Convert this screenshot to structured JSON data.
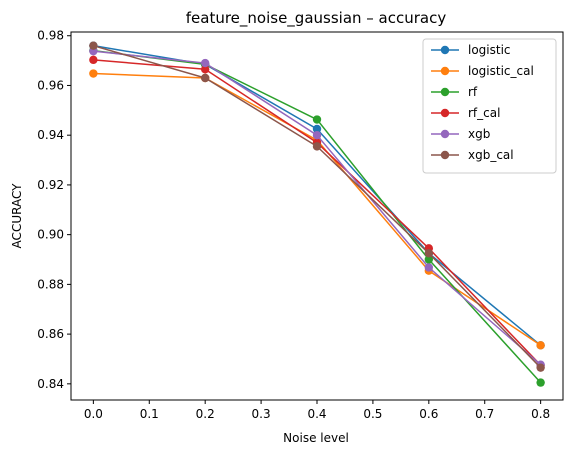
{
  "chart_data": {
    "type": "line",
    "title": "feature_noise_gaussian – accuracy",
    "xlabel": "Noise level",
    "ylabel": "ACCURACY",
    "xlim": [
      -0.04,
      0.84
    ],
    "ylim": [
      0.8335,
      0.9815
    ],
    "xticks": [
      0.0,
      0.1,
      0.2,
      0.3,
      0.4,
      0.5,
      0.6,
      0.7,
      0.8
    ],
    "xtick_labels": [
      "0.0",
      "0.1",
      "0.2",
      "0.3",
      "0.4",
      "0.5",
      "0.6",
      "0.7",
      "0.8"
    ],
    "yticks": [
      0.84,
      0.86,
      0.88,
      0.9,
      0.92,
      0.94,
      0.96,
      0.98
    ],
    "ytick_labels": [
      "0.84",
      "0.86",
      "0.88",
      "0.90",
      "0.92",
      "0.94",
      "0.96",
      "0.98"
    ],
    "grid": false,
    "legend_position": "top-right",
    "x": [
      0.0,
      0.2,
      0.4,
      0.6,
      0.8
    ],
    "series": [
      {
        "name": "logistic",
        "color": "#1f77b4",
        "values": [
          0.976,
          0.9685,
          0.9425,
          0.8925,
          0.8555
        ]
      },
      {
        "name": "logistic_cal",
        "color": "#ff7f0e",
        "values": [
          0.9648,
          0.963,
          0.938,
          0.8855,
          0.8555
        ]
      },
      {
        "name": "rf",
        "color": "#2ca02c",
        "values": [
          0.974,
          0.9685,
          0.9463,
          0.89,
          0.8405
        ]
      },
      {
        "name": "rf_cal",
        "color": "#d62728",
        "values": [
          0.9703,
          0.9665,
          0.937,
          0.8945,
          0.8475
        ]
      },
      {
        "name": "xgb",
        "color": "#9467bd",
        "values": [
          0.9738,
          0.969,
          0.94,
          0.8868,
          0.8477
        ]
      },
      {
        "name": "xgb_cal",
        "color": "#8c564b",
        "values": [
          0.976,
          0.963,
          0.9355,
          0.8925,
          0.8465
        ]
      }
    ]
  }
}
